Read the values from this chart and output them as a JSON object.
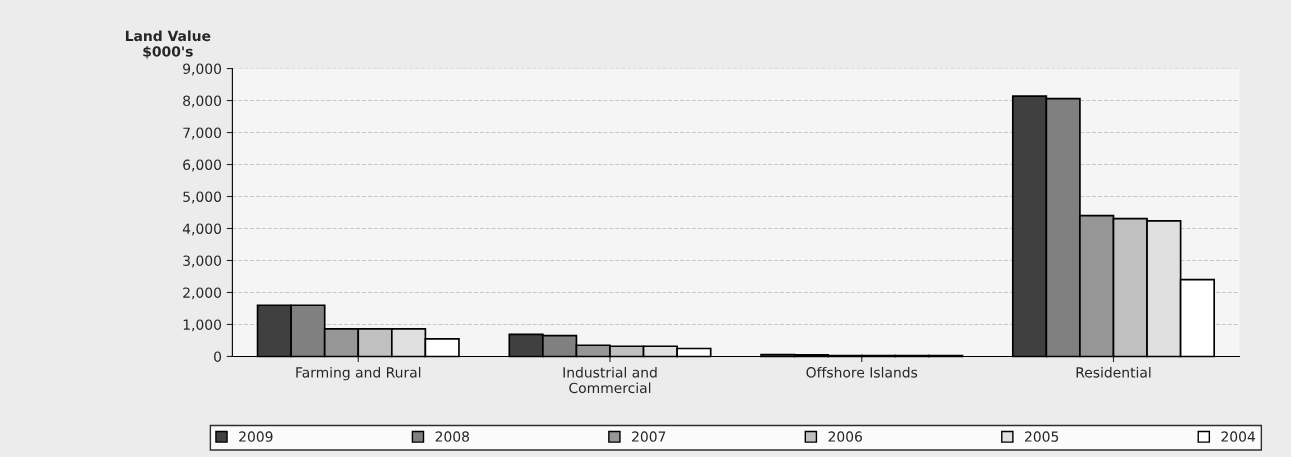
{
  "chart_data": {
    "type": "bar",
    "ylabel": "Land Value\n$000's",
    "categories": [
      "Farming and Rural",
      "Industrial and\nCommercial",
      "Offshore Islands",
      "Residential"
    ],
    "series": [
      {
        "name": "2009",
        "color": "#404040",
        "values": [
          1600,
          690,
          60,
          8140
        ]
      },
      {
        "name": "2008",
        "color": "#808080",
        "values": [
          1600,
          650,
          50,
          8060
        ]
      },
      {
        "name": "2007",
        "color": "#969696",
        "values": [
          860,
          350,
          30,
          4400
        ]
      },
      {
        "name": "2006",
        "color": "#c0c0c0",
        "values": [
          860,
          320,
          30,
          4310
        ]
      },
      {
        "name": "2005",
        "color": "#e0e0e0",
        "values": [
          860,
          320,
          30,
          4240
        ]
      },
      {
        "name": "2004",
        "color": "#ffffff",
        "values": [
          550,
          250,
          30,
          2400
        ]
      }
    ],
    "ylim": [
      0,
      9000
    ],
    "yticks": [
      0,
      {
        "value": 1000,
        "label": "1,000"
      },
      {
        "value": 2000,
        "label": "2,000"
      },
      {
        "value": 3000,
        "label": "3,000"
      },
      {
        "value": 4000,
        "label": "4,000"
      },
      {
        "value": 5000,
        "label": "5,000"
      },
      {
        "value": 6000,
        "label": "6,000"
      },
      {
        "value": 7000,
        "label": "7,000"
      },
      {
        "value": 8000,
        "label": "8,000"
      },
      {
        "value": 9000,
        "label": "9,000"
      }
    ],
    "grid": "y",
    "legend": "bottom"
  }
}
